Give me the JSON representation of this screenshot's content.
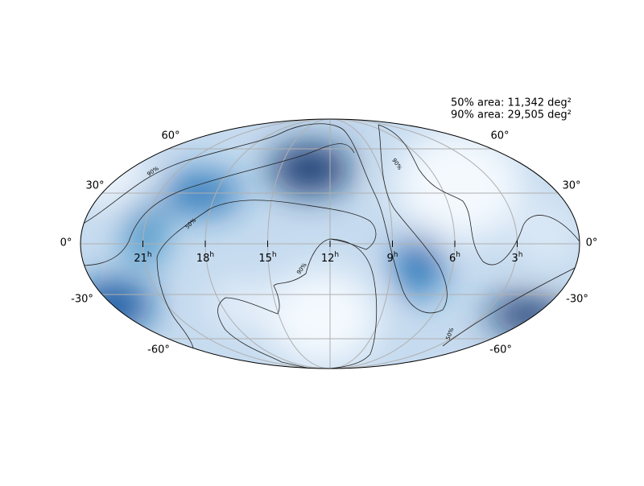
{
  "annotations": [
    "50% area: 11,342 deg²",
    "90% area: 29,505 deg²"
  ],
  "lat_labels_left": [
    "60°",
    "30°",
    "0°",
    "-30°",
    "-60°"
  ],
  "lat_labels_right": [
    "60°",
    "30°",
    "0°",
    "-30°",
    "-60°"
  ],
  "ra_labels": [
    {
      "hour": "21",
      "unit": "h"
    },
    {
      "hour": "18",
      "unit": "h"
    },
    {
      "hour": "15",
      "unit": "h"
    },
    {
      "hour": "12",
      "unit": "h"
    },
    {
      "hour": "9",
      "unit": "h"
    },
    {
      "hour": "6",
      "unit": "h"
    },
    {
      "hour": "3",
      "unit": "h"
    }
  ],
  "contour_labels": [
    "90%",
    "50%",
    "90%",
    "90%",
    "50%"
  ]
}
